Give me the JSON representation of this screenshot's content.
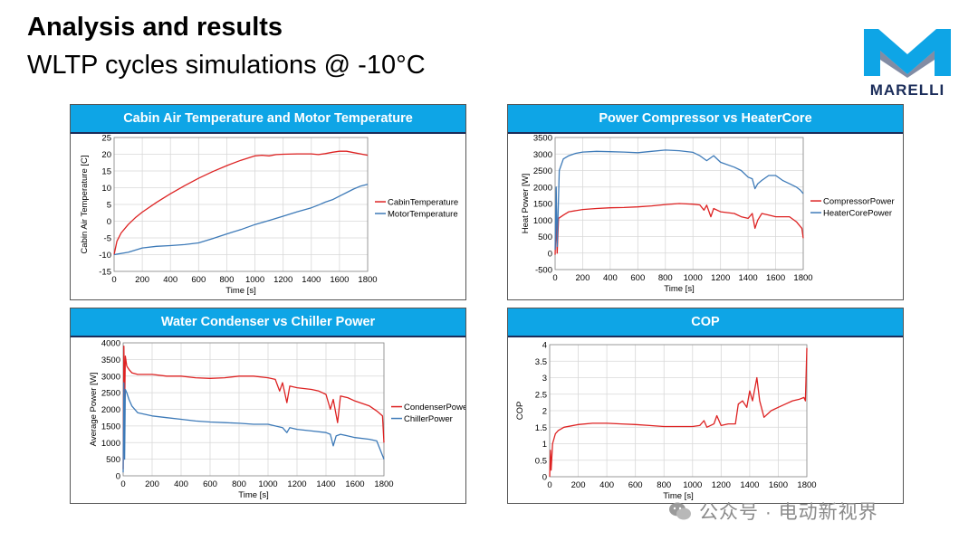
{
  "slide": {
    "title": "Analysis and results",
    "subtitle": "WLTP cycles simulations @ -10°C",
    "logo_text": "MARELLI",
    "watermark": "公众号 · 电动新视界"
  },
  "colors": {
    "header_bg": "#0ea5e6",
    "red": "#dd2222",
    "blue": "#3d7ab8",
    "brand": "#1b2d5a"
  },
  "chart_data": [
    {
      "type": "line",
      "title": "Cabin Air Temperature and Motor Temperature",
      "xlabel": "Time [s]",
      "ylabel": "Cabin Air Temperature [C]",
      "xlim": [
        0,
        1800
      ],
      "ylim": [
        -15,
        25
      ],
      "xticks": [
        0,
        200,
        400,
        600,
        800,
        1000,
        1200,
        1400,
        1600,
        1800
      ],
      "yticks": [
        -15,
        -10,
        -5,
        0,
        5,
        10,
        15,
        20,
        25
      ],
      "legend_position": "right",
      "series": [
        {
          "name": "CabinTemperature",
          "color": "#dd2222",
          "x": [
            0,
            20,
            50,
            100,
            150,
            200,
            300,
            400,
            500,
            600,
            700,
            800,
            900,
            1000,
            1050,
            1100,
            1150,
            1200,
            1300,
            1400,
            1450,
            1500,
            1550,
            1600,
            1650,
            1700,
            1800
          ],
          "y": [
            -10,
            -6,
            -3.5,
            -1,
            1,
            2.7,
            5.6,
            8.2,
            10.6,
            12.8,
            14.8,
            16.6,
            18.2,
            19.5,
            19.7,
            19.5,
            19.9,
            20,
            20.1,
            20.1,
            19.9,
            20.2,
            20.6,
            20.9,
            20.9,
            20.5,
            19.7
          ]
        },
        {
          "name": "MotorTemperature",
          "color": "#3d7ab8",
          "x": [
            0,
            100,
            200,
            300,
            400,
            500,
            600,
            700,
            800,
            900,
            1000,
            1100,
            1200,
            1300,
            1400,
            1450,
            1500,
            1550,
            1600,
            1700,
            1750,
            1800
          ],
          "y": [
            -10,
            -9.3,
            -8,
            -7.5,
            -7.3,
            -7,
            -6.5,
            -5.2,
            -3.8,
            -2.5,
            -1,
            0.2,
            1.5,
            2.8,
            4,
            4.8,
            5.7,
            6.4,
            7.5,
            9.6,
            10.5,
            11
          ]
        }
      ]
    },
    {
      "type": "line",
      "title": "Power Compressor vs HeaterCore",
      "xlabel": "Time [s]",
      "ylabel": "Heat Power [W]",
      "xlim": [
        0,
        1800
      ],
      "ylim": [
        -500,
        3500
      ],
      "xticks": [
        0,
        200,
        400,
        600,
        800,
        1000,
        1200,
        1400,
        1600,
        1800
      ],
      "yticks": [
        -500,
        0,
        500,
        1000,
        1500,
        2000,
        2500,
        3000,
        3500
      ],
      "legend_position": "right",
      "series": [
        {
          "name": "CompressorPower",
          "color": "#dd2222",
          "x": [
            0,
            8,
            15,
            25,
            60,
            100,
            200,
            300,
            400,
            500,
            600,
            700,
            800,
            900,
            1000,
            1050,
            1080,
            1100,
            1130,
            1150,
            1200,
            1300,
            1350,
            1400,
            1430,
            1450,
            1470,
            1500,
            1550,
            1600,
            1700,
            1750,
            1790,
            1800
          ],
          "y": [
            -50,
            1000,
            0,
            1050,
            1150,
            1250,
            1320,
            1350,
            1370,
            1380,
            1400,
            1430,
            1470,
            1500,
            1480,
            1460,
            1300,
            1450,
            1100,
            1350,
            1250,
            1200,
            1100,
            1050,
            1200,
            750,
            1000,
            1200,
            1150,
            1100,
            1100,
            950,
            750,
            450
          ]
        },
        {
          "name": "HeaterCorePower",
          "color": "#3d7ab8",
          "x": [
            0,
            8,
            15,
            30,
            60,
            100,
            150,
            200,
            300,
            400,
            500,
            600,
            700,
            800,
            900,
            1000,
            1050,
            1100,
            1150,
            1200,
            1300,
            1350,
            1400,
            1430,
            1450,
            1470,
            1500,
            1550,
            1600,
            1650,
            1700,
            1750,
            1780,
            1800
          ],
          "y": [
            100,
            2000,
            200,
            2500,
            2850,
            2950,
            3020,
            3060,
            3080,
            3070,
            3060,
            3040,
            3080,
            3120,
            3100,
            3050,
            2950,
            2800,
            2950,
            2750,
            2600,
            2500,
            2300,
            2250,
            1950,
            2100,
            2200,
            2350,
            2350,
            2200,
            2100,
            2000,
            1900,
            1800
          ]
        }
      ]
    },
    {
      "type": "line",
      "title": "Water Condenser vs Chiller Power",
      "xlabel": "Time [s]",
      "ylabel": "Average Power [W]",
      "xlim": [
        0,
        1800
      ],
      "ylim": [
        0,
        4000
      ],
      "xticks": [
        0,
        200,
        400,
        600,
        800,
        1000,
        1200,
        1400,
        1600,
        1800
      ],
      "yticks": [
        0,
        500,
        1000,
        1500,
        2000,
        2500,
        3000,
        3500,
        4000
      ],
      "legend_position": "right",
      "series": [
        {
          "name": "CondenserPower",
          "color": "#dd2222",
          "x": [
            0,
            5,
            10,
            15,
            25,
            40,
            60,
            100,
            200,
            300,
            400,
            500,
            600,
            700,
            800,
            900,
            1000,
            1050,
            1080,
            1100,
            1130,
            1150,
            1200,
            1300,
            1350,
            1400,
            1430,
            1450,
            1480,
            1500,
            1550,
            1600,
            1700,
            1750,
            1790,
            1800
          ],
          "y": [
            200,
            3900,
            2000,
            3600,
            3300,
            3200,
            3100,
            3050,
            3050,
            3000,
            3000,
            2950,
            2930,
            2950,
            3000,
            3000,
            2950,
            2900,
            2550,
            2800,
            2200,
            2700,
            2650,
            2600,
            2550,
            2450,
            2000,
            2300,
            1600,
            2400,
            2350,
            2250,
            2100,
            1950,
            1800,
            1000
          ]
        },
        {
          "name": "ChillerPower",
          "color": "#3d7ab8",
          "x": [
            0,
            5,
            10,
            15,
            25,
            40,
            60,
            100,
            200,
            300,
            400,
            500,
            600,
            700,
            800,
            900,
            1000,
            1050,
            1100,
            1130,
            1150,
            1200,
            1300,
            1400,
            1430,
            1450,
            1470,
            1500,
            1550,
            1600,
            1700,
            1750,
            1800
          ],
          "y": [
            100,
            2800,
            500,
            2600,
            2500,
            2300,
            2100,
            1900,
            1800,
            1750,
            1700,
            1650,
            1620,
            1600,
            1580,
            1550,
            1550,
            1500,
            1450,
            1300,
            1450,
            1400,
            1350,
            1300,
            1250,
            900,
            1200,
            1250,
            1200,
            1150,
            1100,
            1050,
            500
          ]
        }
      ]
    },
    {
      "type": "line",
      "title": "COP",
      "xlabel": "Time [s]",
      "ylabel": "COP",
      "xlim": [
        0,
        1800
      ],
      "ylim": [
        0,
        4
      ],
      "xticks": [
        0,
        200,
        400,
        600,
        800,
        1000,
        1200,
        1400,
        1600,
        1800
      ],
      "yticks": [
        0,
        0.5,
        1,
        1.5,
        2,
        2.5,
        3,
        3.5,
        4
      ],
      "legend_position": "none",
      "series": [
        {
          "name": "COP",
          "color": "#dd2222",
          "x": [
            0,
            5,
            10,
            20,
            40,
            60,
            100,
            200,
            300,
            400,
            500,
            600,
            700,
            800,
            900,
            1000,
            1050,
            1080,
            1100,
            1150,
            1170,
            1200,
            1250,
            1300,
            1320,
            1350,
            1380,
            1400,
            1420,
            1450,
            1470,
            1500,
            1550,
            1600,
            1650,
            1700,
            1750,
            1780,
            1790,
            1800
          ],
          "y": [
            0,
            0.8,
            0.2,
            1,
            1.3,
            1.4,
            1.5,
            1.58,
            1.62,
            1.62,
            1.6,
            1.58,
            1.55,
            1.52,
            1.52,
            1.52,
            1.55,
            1.7,
            1.5,
            1.6,
            1.85,
            1.55,
            1.6,
            1.6,
            2.2,
            2.3,
            2.1,
            2.6,
            2.3,
            3,
            2.3,
            1.8,
            2,
            2.1,
            2.2,
            2.3,
            2.35,
            2.4,
            2.3,
            3.9
          ]
        }
      ]
    }
  ]
}
